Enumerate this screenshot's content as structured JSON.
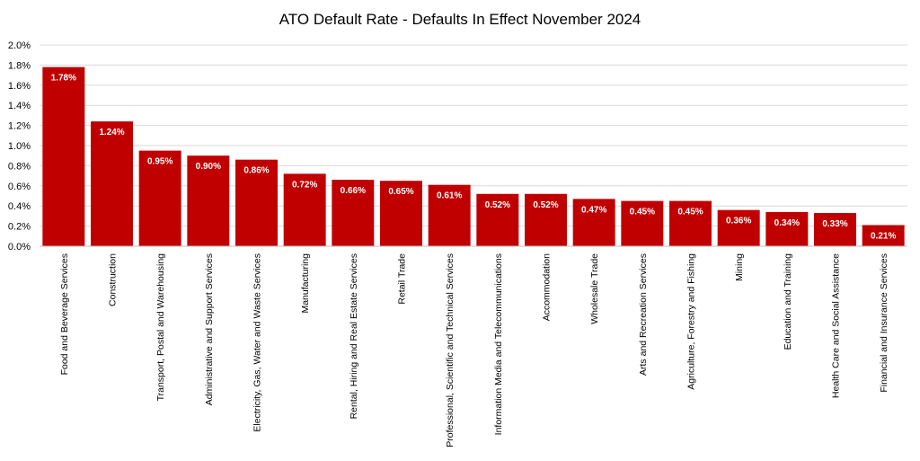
{
  "chart_data": {
    "type": "bar",
    "title": "ATO Default Rate - Defaults In Effect November 2024",
    "categories": [
      "Food and Beverage Services",
      "Construction",
      "Transport, Postal and Warehousing",
      "Administrative and Support Services",
      "Electricity, Gas, Water and Waste Services",
      "Manufacturing",
      "Rental, Hiring and Real Estate Services",
      "Retail Trade",
      "Professional, Scientific and Technical Services",
      "Information Media and Telecommunications",
      "Accommodation",
      "Wholesale Trade",
      "Arts and Recreation Services",
      "Agriculture, Forestry and Fishing",
      "Mining",
      "Education and Training",
      "Health Care and Social Assistance",
      "Financial and Insurance Services"
    ],
    "values": [
      1.78,
      1.24,
      0.95,
      0.9,
      0.86,
      0.72,
      0.66,
      0.65,
      0.61,
      0.52,
      0.52,
      0.47,
      0.45,
      0.45,
      0.36,
      0.34,
      0.33,
      0.21
    ],
    "data_labels": [
      "1.78%",
      "1.24%",
      "0.95%",
      "0.90%",
      "0.86%",
      "0.72%",
      "0.66%",
      "0.65%",
      "0.61%",
      "0.52%",
      "0.52%",
      "0.47%",
      "0.45%",
      "0.45%",
      "0.36%",
      "0.34%",
      "0.33%",
      "0.21%"
    ],
    "yticks": [
      0.0,
      0.2,
      0.4,
      0.6,
      0.8,
      1.0,
      1.2,
      1.4,
      1.6,
      1.8,
      2.0
    ],
    "ytick_labels": [
      "0.0%",
      "0.2%",
      "0.4%",
      "0.6%",
      "0.8%",
      "1.0%",
      "1.2%",
      "1.4%",
      "1.6%",
      "1.8%",
      "2.0%"
    ],
    "ylim": [
      0,
      2.0
    ],
    "xlabel": "",
    "ylabel": "",
    "grid": true,
    "legend": "none",
    "bar_color": "#c00000",
    "data_label_color": "#ffffff"
  }
}
